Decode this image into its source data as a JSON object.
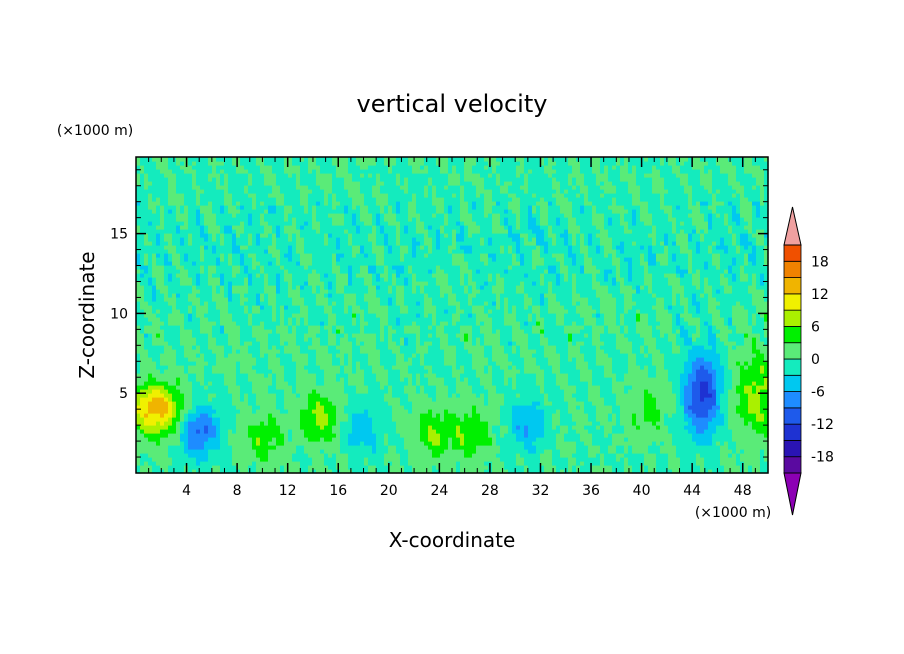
{
  "chart_data": {
    "type": "heatmap",
    "title": "vertical velocity",
    "xlabel": "X-coordinate",
    "ylabel": "Z-coordinate",
    "x_unit": "(×1000 m)",
    "y_unit": "(×1000 m)",
    "xlim": [
      0,
      50
    ],
    "ylim": [
      0,
      19.8
    ],
    "x_ticks": [
      "4",
      "8",
      "12",
      "16",
      "20",
      "24",
      "28",
      "32",
      "36",
      "40",
      "44",
      "48"
    ],
    "y_ticks": [
      "5",
      "10",
      "15"
    ],
    "x_tick_values": [
      4,
      8,
      12,
      16,
      20,
      24,
      28,
      32,
      36,
      40,
      44,
      48
    ],
    "y_tick_values": [
      5,
      10,
      15
    ],
    "colorbar": {
      "labels": [
        "18",
        "12",
        "6",
        "0",
        "-6",
        "-12",
        "-18"
      ],
      "label_values": [
        18,
        12,
        6,
        0,
        -6,
        -12,
        -18
      ],
      "levels": [
        -21,
        -18,
        -15,
        -12,
        -9,
        -6,
        -3,
        0,
        3,
        6,
        9,
        12,
        15,
        18,
        21
      ],
      "colors": [
        "#5a0aa0",
        "#2a14b4",
        "#1e32d2",
        "#1e5aeb",
        "#1e8cff",
        "#00c8f0",
        "#14ebbe",
        "#5aeb78",
        "#00f000",
        "#aaf000",
        "#f0f000",
        "#f0b400",
        "#f08200",
        "#f05000",
        "#e61e1e"
      ],
      "min_extend_color": "#8c00b4",
      "max_extend_color": "#f0a0a0"
    },
    "features": [
      {
        "kind": "updraft",
        "x": 1.6,
        "z": 4.0,
        "peak": 14
      },
      {
        "kind": "downdraft",
        "x": 5.0,
        "z": 2.6,
        "peak": -10
      },
      {
        "kind": "updraft",
        "x": 10.0,
        "z": 2.2,
        "peak": 5
      },
      {
        "kind": "updraft",
        "x": 14.5,
        "z": 3.5,
        "peak": 7
      },
      {
        "kind": "downdraft",
        "x": 18.0,
        "z": 2.8,
        "peak": -5
      },
      {
        "kind": "updraft",
        "x": 23.5,
        "z": 2.5,
        "peak": 6
      },
      {
        "kind": "updraft",
        "x": 26.5,
        "z": 2.5,
        "peak": 6
      },
      {
        "kind": "downdraft",
        "x": 31.0,
        "z": 3.0,
        "peak": -6
      },
      {
        "kind": "updraft",
        "x": 40.5,
        "z": 4.0,
        "peak": 4
      },
      {
        "kind": "downdraft",
        "x": 44.8,
        "z": 5.0,
        "peak": -13
      },
      {
        "kind": "updraft",
        "x": 49.2,
        "z": 5.0,
        "peak": 7
      }
    ]
  }
}
